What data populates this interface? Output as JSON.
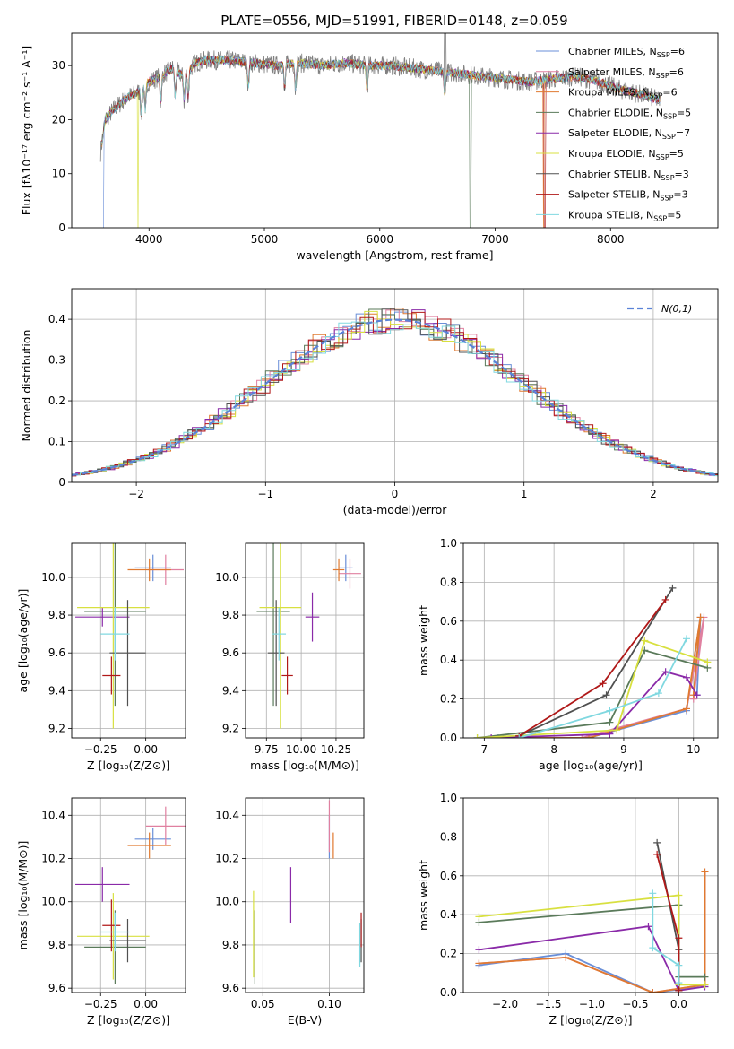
{
  "title": "PLATE=0556, MJD=51991, FIBERID=0148, z=0.059",
  "colors": [
    "#6a8fd8",
    "#7fa2e0",
    "#e07a30",
    "#5a7a5a",
    "#8a2aa8",
    "#d8e040",
    "#505050",
    "#b01818",
    "#80d8e0",
    "#e080a0"
  ],
  "models": [
    {
      "name": "Chabrier MILES, N",
      "sub": "SSP",
      "eq": "=6",
      "color": "#6a8fd8"
    },
    {
      "name": "Salpeter MILES, N",
      "sub": "SSP",
      "eq": "=6",
      "color": "#e080a0"
    },
    {
      "name": "Kroupa MILES, N",
      "sub": "SSP",
      "eq": "=6",
      "color": "#e07a30"
    },
    {
      "name": "Chabrier ELODIE, N",
      "sub": "SSP",
      "eq": "=5",
      "color": "#5a7a5a"
    },
    {
      "name": "Salpeter ELODIE, N",
      "sub": "SSP",
      "eq": "=7",
      "color": "#8a2aa8"
    },
    {
      "name": "Kroupa ELODIE, N",
      "sub": "SSP",
      "eq": "=5",
      "color": "#d8e040"
    },
    {
      "name": "Chabrier STELIB, N",
      "sub": "SSP",
      "eq": "=3",
      "color": "#505050"
    },
    {
      "name": "Salpeter STELIB, N",
      "sub": "SSP",
      "eq": "=3",
      "color": "#b01818"
    },
    {
      "name": "Kroupa STELIB, N",
      "sub": "SSP",
      "eq": "=5",
      "color": "#80d8e0"
    }
  ],
  "chart_data": [
    {
      "type": "line",
      "id": "spectrum",
      "xlabel": "wavelength [Angstrom, rest frame]",
      "ylabel": "Flux [fλ10⁻¹⁷ erg cm⁻² s⁻¹ A⁻¹]",
      "xlim": [
        3330,
        8930
      ],
      "ylim": [
        0,
        36
      ],
      "xticks": [
        4000,
        5000,
        6000,
        7000,
        8000
      ],
      "yticks": [
        0,
        10,
        20,
        30
      ],
      "continuum": [
        [
          3580,
          14
        ],
        [
          3620,
          20
        ],
        [
          3700,
          22
        ],
        [
          3800,
          24
        ],
        [
          3900,
          25
        ],
        [
          4000,
          27
        ],
        [
          4100,
          28
        ],
        [
          4200,
          29.5
        ],
        [
          4300,
          28
        ],
        [
          4400,
          30.5
        ],
        [
          4500,
          31
        ],
        [
          4700,
          31
        ],
        [
          4900,
          30.5
        ],
        [
          5100,
          30
        ],
        [
          5300,
          30.5
        ],
        [
          5500,
          30
        ],
        [
          5700,
          30.5
        ],
        [
          5900,
          30
        ],
        [
          6100,
          30
        ],
        [
          6300,
          29.5
        ],
        [
          6500,
          29
        ],
        [
          6700,
          28.5
        ],
        [
          6900,
          28
        ],
        [
          7100,
          27.5
        ],
        [
          7300,
          27
        ],
        [
          7500,
          27.5
        ],
        [
          7700,
          28
        ],
        [
          7900,
          27
        ],
        [
          8100,
          25.5
        ],
        [
          8300,
          24.5
        ],
        [
          8430,
          23.5
        ]
      ]
    },
    {
      "type": "histogram",
      "id": "residuals",
      "xlabel": "(data-model)/error",
      "ylabel": "Normed distribution",
      "xlim": [
        -2.5,
        2.5
      ],
      "ylim": [
        0,
        0.475
      ],
      "xticks": [
        -2,
        -1,
        0,
        1,
        2
      ],
      "yticks": [
        0,
        0.1,
        0.2,
        0.3,
        0.4
      ],
      "xticklabels": [
        "−2",
        "−1",
        "0",
        "1",
        "2"
      ],
      "legend": "N(0,1)",
      "legend_placement": "top-right"
    },
    {
      "type": "scatter",
      "id": "age_vs_Z",
      "xlabel": "Z [log₁₀(Z/Z⊙)]",
      "ylabel": "age  [log₁₀(age/yr)]",
      "xlim": [
        -0.41,
        0.22
      ],
      "ylim": [
        9.15,
        10.18
      ],
      "xticks": [
        -0.25,
        0,
        0.25
      ],
      "xticklabels": [
        "−0.25",
        "0.00",
        ""
      ],
      "yticks": [
        9.2,
        9.4,
        9.6,
        9.8,
        10.0
      ],
      "points": [
        {
          "x": 0.04,
          "y": 10.05,
          "xerr": 0.1,
          "yerr": 0.07,
          "c": "#6a8fd8"
        },
        {
          "x": 0.11,
          "y": 10.04,
          "xerr": 0.1,
          "yerr": 0.08,
          "c": "#e080a0"
        },
        {
          "x": 0.02,
          "y": 10.04,
          "xerr": 0.12,
          "yerr": 0.06,
          "c": "#e07a30"
        },
        {
          "x": -0.17,
          "y": 9.82,
          "xerr": 0.17,
          "yerr": 0.5,
          "c": "#5a7a5a"
        },
        {
          "x": -0.24,
          "y": 9.79,
          "xerr": 0.15,
          "yerr": 0.05,
          "c": "#8a2aa8"
        },
        {
          "x": -0.18,
          "y": 9.84,
          "xerr": 0.2,
          "yerr": 0.64,
          "c": "#d8e040"
        },
        {
          "x": -0.1,
          "y": 9.6,
          "xerr": 0.1,
          "yerr": 0.28,
          "c": "#505050"
        },
        {
          "x": -0.19,
          "y": 9.48,
          "xerr": 0.05,
          "yerr": 0.1,
          "c": "#b01818"
        },
        {
          "x": -0.17,
          "y": 9.7,
          "xerr": 0.08,
          "yerr": 0.14,
          "c": "#80d8e0"
        }
      ]
    },
    {
      "type": "scatter",
      "id": "age_vs_mass",
      "xlabel": "mass [log₁₀(M/M⊙)]",
      "ylabel": "",
      "xlim": [
        9.6,
        10.45
      ],
      "ylim": [
        9.15,
        10.18
      ],
      "xticks": [
        9.75,
        10.0,
        10.25
      ],
      "xticklabels": [
        "9.75",
        "10.00",
        "10.25"
      ],
      "yticks": [
        9.2,
        9.4,
        9.6,
        9.8,
        10.0
      ],
      "points": [
        {
          "x": 10.32,
          "y": 10.05,
          "xerr": 0.05,
          "yerr": 0.07,
          "c": "#6a8fd8"
        },
        {
          "x": 10.35,
          "y": 10.02,
          "xerr": 0.08,
          "yerr": 0.08,
          "c": "#e080a0"
        },
        {
          "x": 10.27,
          "y": 10.04,
          "xerr": 0.04,
          "yerr": 0.06,
          "c": "#e07a30"
        },
        {
          "x": 9.8,
          "y": 9.82,
          "xerr": 0.12,
          "yerr": 0.5,
          "c": "#5a7a5a"
        },
        {
          "x": 10.08,
          "y": 9.79,
          "xerr": 0.05,
          "yerr": 0.13,
          "c": "#8a2aa8"
        },
        {
          "x": 9.85,
          "y": 9.84,
          "xerr": 0.15,
          "yerr": 0.64,
          "c": "#d8e040"
        },
        {
          "x": 9.82,
          "y": 9.6,
          "xerr": 0.06,
          "yerr": 0.28,
          "c": "#505050"
        },
        {
          "x": 9.9,
          "y": 9.48,
          "xerr": 0.04,
          "yerr": 0.1,
          "c": "#b01818"
        },
        {
          "x": 9.84,
          "y": 9.7,
          "xerr": 0.05,
          "yerr": 0.14,
          "c": "#80d8e0"
        }
      ]
    },
    {
      "type": "line",
      "id": "weight_vs_age",
      "xlabel": "age  [log₁₀(age/yr)]",
      "ylabel": "mass weight",
      "xlim": [
        6.7,
        10.35
      ],
      "ylim": [
        0,
        1
      ],
      "xticks": [
        7,
        8,
        9,
        10
      ],
      "yticks": [
        0,
        0.2,
        0.4,
        0.6,
        0.8,
        1.0
      ],
      "series": [
        {
          "c": "#6a8fd8",
          "pts": [
            [
              7.2,
              0
            ],
            [
              8.5,
              0
            ],
            [
              9.9,
              0.14
            ],
            [
              10.1,
              0.62
            ],
            [
              10.05,
              0.22
            ]
          ]
        },
        {
          "c": "#e080a0",
          "pts": [
            [
              7.3,
              0
            ],
            [
              8.4,
              0
            ],
            [
              9.9,
              0.15
            ],
            [
              10.15,
              0.62
            ],
            [
              10.0,
              0.2
            ]
          ]
        },
        {
          "c": "#e07a30",
          "pts": [
            [
              7.3,
              0
            ],
            [
              8.5,
              0
            ],
            [
              9.9,
              0.15
            ],
            [
              10.1,
              0.62
            ],
            [
              10.0,
              0.22
            ]
          ]
        },
        {
          "c": "#5a7a5a",
          "pts": [
            [
              6.9,
              0
            ],
            [
              8.8,
              0.08
            ],
            [
              9.3,
              0.45
            ],
            [
              10.2,
              0.36
            ]
          ]
        },
        {
          "c": "#8a2aa8",
          "pts": [
            [
              7.1,
              0
            ],
            [
              8.8,
              0.02
            ],
            [
              9.6,
              0.34
            ],
            [
              9.9,
              0.31
            ],
            [
              10.05,
              0.22
            ]
          ]
        },
        {
          "c": "#d8e040",
          "pts": [
            [
              6.9,
              0
            ],
            [
              8.9,
              0.04
            ],
            [
              9.3,
              0.5
            ],
            [
              10.2,
              0.39
            ]
          ]
        },
        {
          "c": "#505050",
          "pts": [
            [
              7.5,
              0.01
            ],
            [
              8.75,
              0.22
            ],
            [
              9.7,
              0.77
            ]
          ]
        },
        {
          "c": "#b01818",
          "pts": [
            [
              7.5,
              0.01
            ],
            [
              8.7,
              0.28
            ],
            [
              9.6,
              0.71
            ]
          ]
        },
        {
          "c": "#80d8e0",
          "pts": [
            [
              7.5,
              0
            ],
            [
              8.8,
              0.14
            ],
            [
              9.5,
              0.23
            ],
            [
              9.9,
              0.51
            ]
          ]
        }
      ]
    },
    {
      "type": "scatter",
      "id": "mass_vs_Z",
      "xlabel": "Z [log₁₀(Z/Z⊙)]",
      "ylabel": "mass [log₁₀(M/M⊙)]",
      "xlim": [
        -0.41,
        0.22
      ],
      "ylim": [
        9.58,
        10.48
      ],
      "xticks": [
        -0.25,
        0,
        0.25
      ],
      "xticklabels": [
        "−0.25",
        "0.00",
        ""
      ],
      "yticks": [
        9.6,
        9.8,
        10.0,
        10.2,
        10.4
      ],
      "points": [
        {
          "x": 0.04,
          "y": 10.29,
          "xerr": 0.1,
          "yerr": 0.05,
          "c": "#6a8fd8"
        },
        {
          "x": 0.11,
          "y": 10.35,
          "xerr": 0.11,
          "yerr": 0.09,
          "c": "#e080a0"
        },
        {
          "x": 0.02,
          "y": 10.26,
          "xerr": 0.12,
          "yerr": 0.06,
          "c": "#e07a30"
        },
        {
          "x": -0.17,
          "y": 9.79,
          "xerr": 0.17,
          "yerr": 0.17,
          "c": "#5a7a5a"
        },
        {
          "x": -0.24,
          "y": 10.08,
          "xerr": 0.15,
          "yerr": 0.08,
          "c": "#8a2aa8"
        },
        {
          "x": -0.18,
          "y": 9.84,
          "xerr": 0.2,
          "yerr": 0.2,
          "c": "#d8e040"
        },
        {
          "x": -0.1,
          "y": 9.82,
          "xerr": 0.1,
          "yerr": 0.1,
          "c": "#505050"
        },
        {
          "x": -0.19,
          "y": 9.89,
          "xerr": 0.05,
          "yerr": 0.12,
          "c": "#b01818"
        },
        {
          "x": -0.17,
          "y": 9.86,
          "xerr": 0.08,
          "yerr": 0.09,
          "c": "#80d8e0"
        }
      ]
    },
    {
      "type": "scatter",
      "id": "mass_vs_EBV",
      "xlabel": "E(B-V)",
      "ylabel": "",
      "xlim": [
        0.037,
        0.126
      ],
      "ylim": [
        9.58,
        10.48
      ],
      "xticks": [
        0.05,
        0.1
      ],
      "xticklabels": [
        "0.05",
        "0.10"
      ],
      "yticks": [
        9.6,
        9.8,
        10.0,
        10.2,
        10.4
      ],
      "points": [
        {
          "x": 0.1,
          "y": 10.3,
          "yerr": 0.1,
          "c": "#6a8fd8"
        },
        {
          "x": 0.1,
          "y": 10.35,
          "yerr": 0.12,
          "c": "#e080a0"
        },
        {
          "x": 0.103,
          "y": 10.26,
          "yerr": 0.06,
          "c": "#e07a30"
        },
        {
          "x": 0.044,
          "y": 9.79,
          "yerr": 0.17,
          "c": "#5a7a5a"
        },
        {
          "x": 0.071,
          "y": 10.03,
          "yerr": 0.13,
          "c": "#8a2aa8"
        },
        {
          "x": 0.043,
          "y": 9.85,
          "yerr": 0.2,
          "c": "#d8e040"
        },
        {
          "x": 0.124,
          "y": 9.82,
          "yerr": 0.1,
          "c": "#505050"
        },
        {
          "x": 0.124,
          "y": 9.87,
          "yerr": 0.08,
          "c": "#b01818"
        },
        {
          "x": 0.123,
          "y": 9.8,
          "yerr": 0.1,
          "c": "#80d8e0"
        }
      ]
    },
    {
      "type": "line",
      "id": "weight_vs_Z",
      "xlabel": "Z [log₁₀(Z/Z⊙)]",
      "ylabel": "mass weight",
      "xlim": [
        -2.48,
        0.45
      ],
      "ylim": [
        0,
        1
      ],
      "xticks": [
        -2,
        -1.5,
        -1,
        -0.5,
        0
      ],
      "xticklabels": [
        "−2.0",
        "−1.5",
        "−1.0",
        "−0.5",
        "0.0"
      ],
      "yticks": [
        0,
        0.2,
        0.4,
        0.6,
        0.8,
        1.0
      ],
      "series": [
        {
          "c": "#6a8fd8",
          "pts": [
            [
              -2.3,
              0.14
            ],
            [
              -1.3,
              0.2
            ],
            [
              -0.3,
              0
            ],
            [
              0.3,
              0.03
            ],
            [
              0.3,
              0.62
            ]
          ]
        },
        {
          "c": "#e080a0",
          "pts": [
            [
              -2.3,
              0.15
            ],
            [
              -1.3,
              0.18
            ],
            [
              -0.3,
              0
            ],
            [
              0.3,
              0.04
            ],
            [
              0.3,
              0.62
            ]
          ]
        },
        {
          "c": "#e07a30",
          "pts": [
            [
              -2.3,
              0.15
            ],
            [
              -1.3,
              0.18
            ],
            [
              -0.3,
              0
            ],
            [
              0.3,
              0.04
            ],
            [
              0.3,
              0.62
            ]
          ]
        },
        {
          "c": "#5a7a5a",
          "pts": [
            [
              -2.3,
              0.36
            ],
            [
              0.0,
              0.45
            ],
            [
              0.0,
              0.08
            ],
            [
              0.3,
              0.08
            ]
          ]
        },
        {
          "c": "#8a2aa8",
          "pts": [
            [
              -2.3,
              0.22
            ],
            [
              -0.35,
              0.34
            ],
            [
              0.0,
              0.01
            ],
            [
              0.3,
              0.03
            ]
          ]
        },
        {
          "c": "#d8e040",
          "pts": [
            [
              -2.3,
              0.39
            ],
            [
              0.0,
              0.5
            ],
            [
              0.0,
              0.04
            ],
            [
              0.3,
              0.04
            ]
          ]
        },
        {
          "c": "#505050",
          "pts": [
            [
              -0.25,
              0.77
            ],
            [
              0.0,
              0.22
            ],
            [
              0.0,
              0.01
            ]
          ]
        },
        {
          "c": "#b01818",
          "pts": [
            [
              -0.25,
              0.71
            ],
            [
              0.0,
              0.28
            ],
            [
              0.0,
              0.01
            ]
          ]
        },
        {
          "c": "#80d8e0",
          "pts": [
            [
              -0.3,
              0.51
            ],
            [
              -0.3,
              0.23
            ],
            [
              0.0,
              0.14
            ],
            [
              0.0,
              0.05
            ]
          ]
        }
      ]
    }
  ]
}
